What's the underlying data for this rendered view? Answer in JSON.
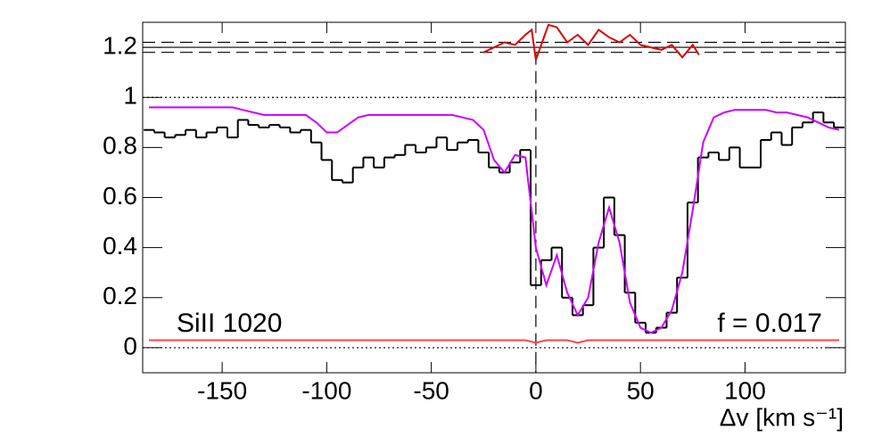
{
  "chart_data": {
    "type": "line",
    "x_label": "Δv [km s⁻¹]",
    "annotations": [
      "SiII 1020",
      "f = 0.017"
    ],
    "xlim": [
      -188,
      148
    ],
    "ylim": [
      -0.1,
      1.3
    ],
    "xticks": [
      -150,
      -100,
      -50,
      0,
      50,
      100
    ],
    "yticks": [
      0,
      0.2,
      0.4,
      0.6,
      0.8,
      1,
      1.2
    ],
    "hlines": [
      {
        "value": 1.2,
        "style": "solid",
        "color": "#000000"
      },
      {
        "value": 1.22,
        "style": "dashed",
        "color": "#000000"
      },
      {
        "value": 1.18,
        "style": "dashed",
        "color": "#000000"
      },
      {
        "value": 1,
        "style": "dotted",
        "color": "#000000"
      },
      {
        "value": 0,
        "style": "dotted",
        "color": "#000000"
      }
    ],
    "vlines": [
      {
        "value": 0,
        "style": "dashed",
        "color": "#000000"
      }
    ],
    "x": [
      -185,
      -180,
      -175,
      -170,
      -165,
      -160,
      -155,
      -150,
      -145,
      -140,
      -135,
      -130,
      -125,
      -120,
      -115,
      -110,
      -105,
      -100,
      -95,
      -90,
      -85,
      -80,
      -75,
      -70,
      -65,
      -60,
      -55,
      -50,
      -45,
      -40,
      -35,
      -30,
      -25,
      -20,
      -15,
      -10,
      -5,
      0,
      5,
      10,
      15,
      20,
      25,
      30,
      35,
      40,
      45,
      50,
      55,
      60,
      65,
      70,
      75,
      80,
      85,
      90,
      95,
      100,
      105,
      110,
      115,
      120,
      125,
      130,
      135,
      140,
      145
    ],
    "series": [
      {
        "color": "#000000",
        "step": true,
        "values": [
          0.87,
          0.86,
          0.84,
          0.85,
          0.87,
          0.84,
          0.86,
          0.88,
          0.84,
          0.91,
          0.89,
          0.88,
          0.89,
          0.88,
          0.86,
          0.87,
          0.82,
          0.75,
          0.67,
          0.66,
          0.72,
          0.76,
          0.72,
          0.76,
          0.77,
          0.81,
          0.78,
          0.8,
          0.84,
          0.79,
          0.82,
          0.83,
          0.78,
          0.72,
          0.7,
          0.74,
          0.79,
          0.25,
          0.35,
          0.4,
          0.2,
          0.13,
          0.17,
          0.4,
          0.6,
          0.45,
          0.22,
          0.1,
          0.06,
          0.08,
          0.14,
          0.28,
          0.58,
          0.76,
          0.78,
          0.75,
          0.8,
          0.72,
          0.72,
          0.83,
          0.86,
          0.81,
          0.88,
          0.9,
          0.94,
          0.9,
          0.88
        ]
      },
      {
        "color": "#cc00ff",
        "step": false,
        "values": [
          0.96,
          0.96,
          0.96,
          0.96,
          0.96,
          0.96,
          0.96,
          0.96,
          0.96,
          0.95,
          0.94,
          0.93,
          0.93,
          0.93,
          0.93,
          0.93,
          0.9,
          0.86,
          0.86,
          0.89,
          0.92,
          0.93,
          0.93,
          0.93,
          0.93,
          0.93,
          0.93,
          0.93,
          0.93,
          0.93,
          0.92,
          0.91,
          0.87,
          0.75,
          0.7,
          0.77,
          0.76,
          0.4,
          0.25,
          0.37,
          0.22,
          0.13,
          0.2,
          0.42,
          0.56,
          0.42,
          0.18,
          0.08,
          0.06,
          0.08,
          0.15,
          0.3,
          0.55,
          0.82,
          0.92,
          0.94,
          0.95,
          0.95,
          0.95,
          0.95,
          0.94,
          0.94,
          0.93,
          0.92,
          0.9,
          0.88,
          0.87
        ]
      },
      {
        "color": "#ff4444",
        "step": false,
        "values": [
          0.03,
          0.03,
          0.03,
          0.03,
          0.03,
          0.03,
          0.03,
          0.03,
          0.03,
          0.03,
          0.03,
          0.03,
          0.03,
          0.03,
          0.03,
          0.03,
          0.03,
          0.03,
          0.03,
          0.03,
          0.03,
          0.03,
          0.03,
          0.03,
          0.03,
          0.03,
          0.03,
          0.03,
          0.03,
          0.03,
          0.03,
          0.03,
          0.03,
          0.03,
          0.03,
          0.03,
          0.03,
          0.02,
          0.03,
          0.03,
          0.03,
          0.02,
          0.03,
          0.03,
          0.03,
          0.03,
          0.03,
          0.03,
          0.03,
          0.03,
          0.03,
          0.03,
          0.03,
          0.03,
          0.03,
          0.03,
          0.03,
          0.03,
          0.03,
          0.03,
          0.03,
          0.03,
          0.03,
          0.03,
          0.03,
          0.03,
          0.03
        ]
      },
      {
        "color": "#dd0000",
        "step": false,
        "x": [
          -25,
          -20,
          -15,
          -10,
          -5,
          -2,
          0,
          3,
          6,
          10,
          15,
          20,
          25,
          30,
          35,
          40,
          45,
          50,
          55,
          60,
          65,
          70,
          75,
          78
        ],
        "values": [
          1.18,
          1.2,
          1.22,
          1.21,
          1.25,
          1.27,
          1.15,
          1.22,
          1.29,
          1.28,
          1.22,
          1.25,
          1.21,
          1.27,
          1.24,
          1.22,
          1.25,
          1.21,
          1.2,
          1.19,
          1.21,
          1.16,
          1.21,
          1.17
        ]
      }
    ]
  }
}
